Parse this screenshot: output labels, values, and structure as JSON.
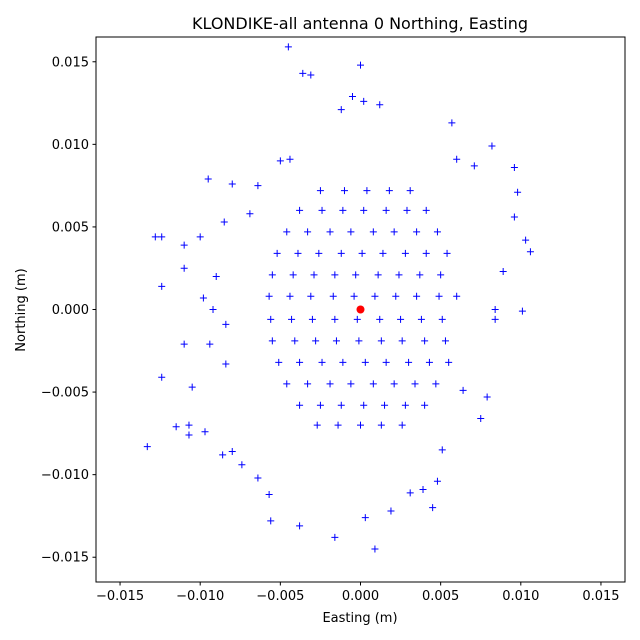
{
  "chart_data": {
    "type": "scatter",
    "title": "KLONDIKE-all antenna 0 Northing, Easting",
    "xlabel": "Easting (m)",
    "ylabel": "Northing (m)",
    "xlim": [
      -0.0165,
      0.0165
    ],
    "ylim": [
      -0.0165,
      0.0165
    ],
    "xticks": [
      {
        "value": -0.015,
        "label": "−0.015"
      },
      {
        "value": -0.01,
        "label": "−0.010"
      },
      {
        "value": -0.005,
        "label": "−0.005"
      },
      {
        "value": 0,
        "label": "0.000"
      },
      {
        "value": 0.005,
        "label": "0.005"
      },
      {
        "value": 0.01,
        "label": "0.010"
      },
      {
        "value": 0.015,
        "label": "0.015"
      }
    ],
    "yticks": [
      {
        "value": -0.015,
        "label": "−0.015"
      },
      {
        "value": -0.01,
        "label": "−0.010"
      },
      {
        "value": -0.005,
        "label": "−0.005"
      },
      {
        "value": 0,
        "label": "0.000"
      },
      {
        "value": 0.005,
        "label": "0.005"
      },
      {
        "value": 0.01,
        "label": "0.010"
      },
      {
        "value": 0.015,
        "label": "0.015"
      }
    ],
    "series": [
      {
        "color": "#0000ff",
        "marker": "+",
        "x": [
          -0.0133,
          -0.0128,
          -0.0124,
          -0.0124,
          -0.0124,
          -0.0115,
          -0.011,
          -0.011,
          -0.011,
          -0.0107,
          -0.0107,
          -0.0105,
          -0.0095,
          -0.01,
          -0.0098,
          -0.0097,
          -0.0086,
          -0.008,
          -0.0085,
          -0.0045,
          -0.0036,
          -0.0031,
          0,
          -0.0005,
          0.0012,
          0.0002,
          -0.0012,
          0.0057,
          0.0082,
          0.0096,
          0.0098,
          0.0096,
          0.0103,
          0.0106,
          0.0101,
          0.0089,
          0.0079,
          0.0075,
          0.0051,
          0.0048,
          0.0045,
          0.0019,
          0.0009,
          0.0003,
          -0.0016,
          -0.0038,
          -0.0056,
          -0.0057,
          -0.0064,
          -0.008,
          -0.0074,
          0.0031,
          0.0039,
          0.0064,
          0.0084,
          0.0084,
          0.0071,
          0.006,
          -0.005,
          -0.0044,
          -0.0064,
          -0.0069,
          -0.009,
          -0.0092,
          -0.0094,
          -0.0084,
          -0.0084,
          -0.0025,
          -0.001,
          0.0004,
          0.0018,
          0.0031,
          -0.0038,
          -0.0024,
          -0.0011,
          0.0002,
          0.0016,
          0.0029,
          0.0041,
          -0.0046,
          -0.0033,
          -0.0019,
          -0.0006,
          0.0008,
          0.0021,
          0.0035,
          0.0048,
          -0.0052,
          -0.0039,
          -0.0026,
          -0.0012,
          0.0001,
          0.0014,
          0.0028,
          0.0041,
          0.0054,
          -0.0055,
          -0.0042,
          -0.0029,
          -0.0016,
          -0.0003,
          0.0011,
          0.0024,
          0.0037,
          0.005,
          -0.0057,
          -0.0044,
          -0.0031,
          -0.0017,
          -0.0004,
          0.0009,
          0.0022,
          0.0035,
          0.0049,
          0.006,
          -0.0056,
          -0.0043,
          -0.003,
          -0.0016,
          -0.0002,
          0.0012,
          0.0025,
          0.0038,
          0.0051,
          -0.0055,
          -0.0041,
          -0.0028,
          -0.0015,
          -0.0001,
          0.0013,
          0.0026,
          0.004,
          0.0053,
          -0.0051,
          -0.0038,
          -0.0024,
          -0.0011,
          0.0003,
          0.0016,
          0.003,
          0.0043,
          0.0055,
          -0.0046,
          -0.0033,
          -0.0019,
          -0.0006,
          0.0008,
          0.0021,
          0.0034,
          0.0047,
          -0.0038,
          -0.0025,
          -0.0012,
          0.0002,
          0.0015,
          0.0028,
          0.004,
          -0.0027,
          -0.0014,
          0,
          0.0013,
          0.0026
        ],
        "y": [
          -0.0083,
          0.0044,
          0.0044,
          0.0014,
          -0.0041,
          -0.0071,
          0.0039,
          0.0025,
          -0.0021,
          -0.007,
          -0.0076,
          -0.0047,
          0.0079,
          0.0044,
          0.0007,
          -0.0074,
          -0.0088,
          0.0076,
          0.0053,
          0.0159,
          0.0143,
          0.0142,
          0.0148,
          0.0129,
          0.0124,
          0.0126,
          0.0121,
          0.0113,
          0.0099,
          0.0086,
          0.0071,
          0.0056,
          0.0042,
          0.0035,
          -0.0001,
          0.0023,
          -0.0053,
          -0.0066,
          -0.0085,
          -0.0104,
          -0.012,
          -0.0122,
          -0.0145,
          -0.0126,
          -0.0138,
          -0.0131,
          -0.0128,
          -0.0112,
          -0.0102,
          -0.0086,
          -0.0094,
          -0.0111,
          -0.0109,
          -0.0049,
          0,
          -0.0006,
          0.0087,
          0.0091,
          0.009,
          0.0091,
          0.0075,
          0.0058,
          0.002,
          0,
          -0.0021,
          -0.0033,
          -0.0009,
          0.0072,
          0.0072,
          0.0072,
          0.0072,
          0.0072,
          0.006,
          0.006,
          0.006,
          0.006,
          0.006,
          0.006,
          0.006,
          0.0047,
          0.0047,
          0.0047,
          0.0047,
          0.0047,
          0.0047,
          0.0047,
          0.0047,
          0.0034,
          0.0034,
          0.0034,
          0.0034,
          0.0034,
          0.0034,
          0.0034,
          0.0034,
          0.0034,
          0.0021,
          0.0021,
          0.0021,
          0.0021,
          0.0021,
          0.0021,
          0.0021,
          0.0021,
          0.0021,
          0.0008,
          0.0008,
          0.0008,
          0.0008,
          0.0008,
          0.0008,
          0.0008,
          0.0008,
          0.0008,
          0.0008,
          -0.0006,
          -0.0006,
          -0.0006,
          -0.0006,
          -0.0006,
          -0.0006,
          -0.0006,
          -0.0006,
          -0.0006,
          -0.0019,
          -0.0019,
          -0.0019,
          -0.0019,
          -0.0019,
          -0.0019,
          -0.0019,
          -0.0019,
          -0.0019,
          -0.0032,
          -0.0032,
          -0.0032,
          -0.0032,
          -0.0032,
          -0.0032,
          -0.0032,
          -0.0032,
          -0.0032,
          -0.0045,
          -0.0045,
          -0.0045,
          -0.0045,
          -0.0045,
          -0.0045,
          -0.0045,
          -0.0045,
          -0.0058,
          -0.0058,
          -0.0058,
          -0.0058,
          -0.0058,
          -0.0058,
          -0.0058,
          -0.007,
          -0.007,
          -0.007,
          -0.007,
          -0.007
        ]
      },
      {
        "color": "#ff0000",
        "marker": "o",
        "x": [
          0
        ],
        "y": [
          0
        ]
      }
    ]
  }
}
